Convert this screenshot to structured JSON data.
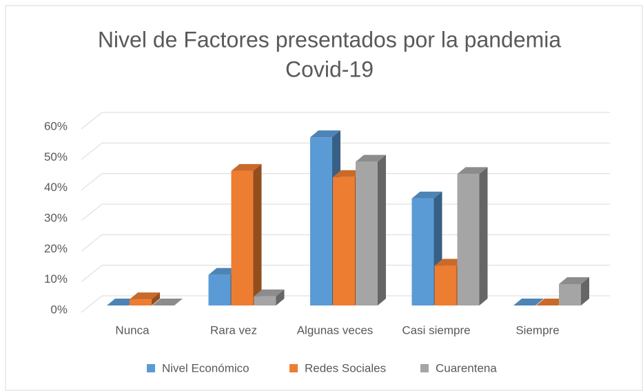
{
  "chart_data": {
    "type": "bar3d",
    "title": [
      "Nivel de Factores presentados por la pandemia",
      "Covid-19"
    ],
    "categories": [
      "Nunca",
      "Rara vez",
      "Algunas veces",
      "Casi siempre",
      "Siempre"
    ],
    "series": [
      {
        "name": "Nivel Económico",
        "color": "#5b9bd5",
        "values": [
          0,
          10,
          55,
          35,
          0
        ]
      },
      {
        "name": "Redes Sociales",
        "color": "#ed7d31",
        "values": [
          2,
          44,
          42,
          13,
          0
        ]
      },
      {
        "name": "Cuarentena",
        "color": "#a5a5a5",
        "values": [
          0,
          3,
          47,
          43,
          7
        ]
      }
    ],
    "ylim": [
      0,
      60
    ],
    "yticks": [
      {
        "value": 0,
        "label": "0%"
      },
      {
        "value": 10,
        "label": "10%"
      },
      {
        "value": 20,
        "label": "20%"
      },
      {
        "value": 30,
        "label": "30%"
      },
      {
        "value": 40,
        "label": "40%"
      },
      {
        "value": 50,
        "label": "50%"
      },
      {
        "value": 60,
        "label": "60%"
      }
    ],
    "grid": true,
    "legend": "bottom"
  }
}
